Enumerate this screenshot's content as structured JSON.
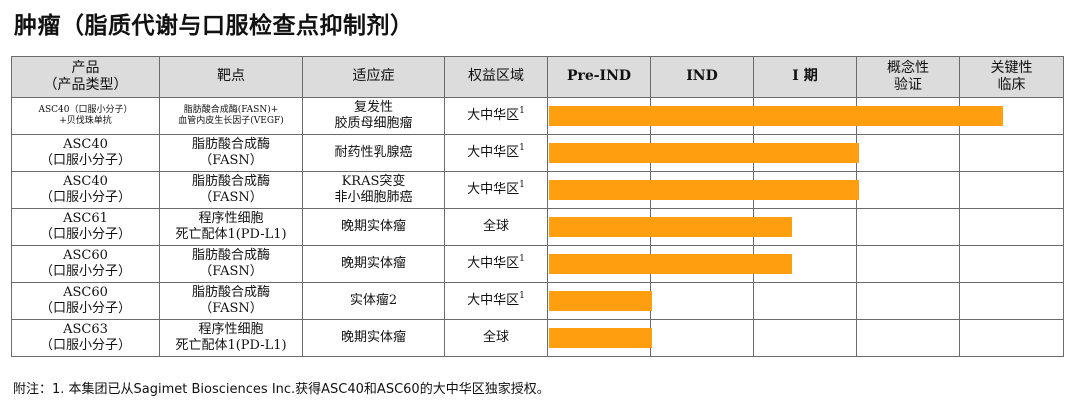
{
  "title": "肿瘤（脂质代谢与口服检查点抑制剂）",
  "headers": {
    "product_line1": "产品",
    "product_line2": "（产品类型）",
    "target": "靶点",
    "indication": "适应症",
    "territory": "权益区域",
    "pre_ind": "Pre-IND",
    "ind": "IND",
    "phase1": "I 期",
    "poc_line1": "概念性",
    "poc_line2": "验证",
    "pivotal_line1": "关键性",
    "pivotal_line2": "临床"
  },
  "rows": [
    {
      "product_line1": "ASC40（口服小分子）",
      "product_line2": "+贝伐珠单抗",
      "target_line1": "脂肪酸合成酶(FASN)+",
      "target_line2": "血管内皮生长因子(VEGF)",
      "indication_line1": "复发性",
      "indication_line2": "胶质母细胞瘤",
      "territory": "大中华区",
      "territory_note": "1",
      "stage_progress": 0.88
    },
    {
      "product_line1": "ASC40",
      "product_line2": "（口服小分子）",
      "target_line1": "脂肪酸合成酶",
      "target_line2": "（FASN）",
      "indication_line1": "耐药性乳腺癌",
      "indication_line2": "",
      "territory": "大中华区",
      "territory_note": "1",
      "stage_progress": 0.6
    },
    {
      "product_line1": "ASC40",
      "product_line2": "（口服小分子）",
      "target_line1": "脂肪酸合成酶",
      "target_line2": "（FASN）",
      "indication_line1": "KRAS突变",
      "indication_line2": "非小细胞肺癌",
      "territory": "大中华区",
      "territory_note": "1",
      "stage_progress": 0.6
    },
    {
      "product_line1": "ASC61",
      "product_line2": "（口服小分子）",
      "target_line1": "程序性细胞",
      "target_line2": "死亡配体1(PD-L1)",
      "indication_line1": "晚期实体瘤",
      "indication_line2": "",
      "territory": "全球",
      "territory_note": "",
      "stage_progress": 0.47
    },
    {
      "product_line1": "ASC60",
      "product_line2": "（口服小分子）",
      "target_line1": "脂肪酸合成酶",
      "target_line2": "（FASN）",
      "indication_line1": "晚期实体瘤",
      "indication_line2": "",
      "territory": "大中华区",
      "territory_note": "1",
      "stage_progress": 0.47
    },
    {
      "product_line1": "ASC60",
      "product_line2": "（口服小分子）",
      "target_line1": "脂肪酸合成酶",
      "target_line2": "（FASN）",
      "indication_line1": "实体瘤2",
      "indication_line2": "",
      "territory": "大中华区",
      "territory_note": "1",
      "stage_progress": 0.2
    },
    {
      "product_line1": "ASC63",
      "product_line2": "（口服小分子）",
      "target_line1": "程序性细胞",
      "target_line2": "死亡配体1(PD-L1)",
      "indication_line1": "晚期实体瘤",
      "indication_line2": "",
      "territory": "全球",
      "territory_note": "",
      "stage_progress": 0.2
    }
  ],
  "footnote": "附注：1. 本集团已从Sagimet Biosciences Inc.获得ASC40和ASC60的大中华区独家授权。",
  "colors": {
    "bar": "#ff9e0f",
    "header_bg": "#dcdcdc"
  }
}
